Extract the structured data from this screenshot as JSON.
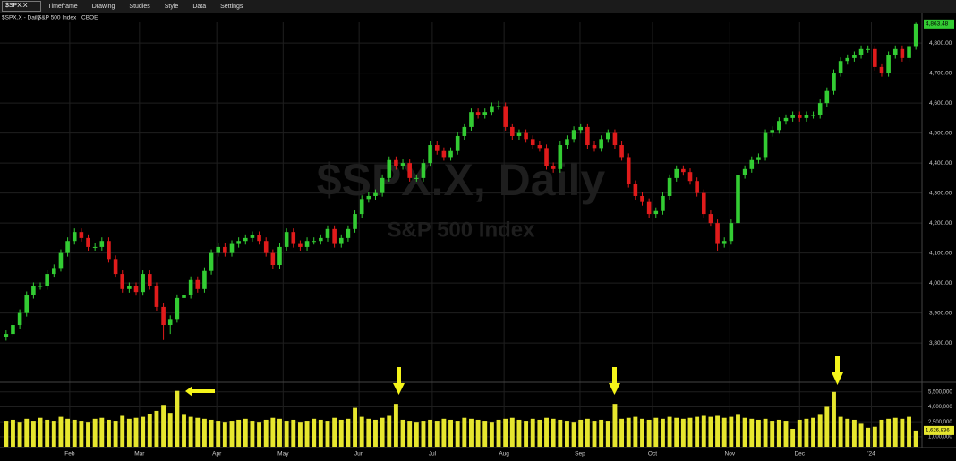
{
  "toolbar": {
    "symbol": "$SPX.X",
    "items": [
      "Timeframe",
      "Drawing",
      "Studies",
      "Style",
      "Data",
      "Settings"
    ]
  },
  "chart_data": {
    "type": "candlestick",
    "title": "$SPX.X - Daily",
    "subtitle": "S&P 500 Index",
    "source": "CBOE",
    "watermark": "$SPX.X, Daily",
    "watermark_subtitle": "S&P 500 Index",
    "xlim": [
      0,
      134
    ],
    "xticks": [
      {
        "value": 9.8,
        "label": "Feb"
      },
      {
        "value": 20,
        "label": "Mar"
      },
      {
        "value": 31.3,
        "label": "Apr"
      },
      {
        "value": 41,
        "label": "May"
      },
      {
        "value": 52.1,
        "label": "Jun"
      },
      {
        "value": 62.8,
        "label": "Jul"
      },
      {
        "value": 73.3,
        "label": "Aug"
      },
      {
        "value": 84.4,
        "label": "Sep"
      },
      {
        "value": 95,
        "label": "Oct"
      },
      {
        "value": 106.3,
        "label": "Nov"
      },
      {
        "value": 116.5,
        "label": "Dec"
      },
      {
        "value": 127,
        "label": "'24"
      }
    ],
    "ylim": [
      3675,
      4869
    ],
    "yticks": [
      {
        "value": 3800,
        "label": "3,800.00"
      },
      {
        "value": 3900,
        "label": "3,900.00"
      },
      {
        "value": 4000,
        "label": "4,000.00"
      },
      {
        "value": 4100,
        "label": "4,100.00"
      },
      {
        "value": 4200,
        "label": "4,200.00"
      },
      {
        "value": 4300,
        "label": "4,300.00"
      },
      {
        "value": 4400,
        "label": "4,400.00"
      },
      {
        "value": 4500,
        "label": "4,500.00"
      },
      {
        "value": 4600,
        "label": "4,600.00"
      },
      {
        "value": 4700,
        "label": "4,700.00"
      },
      {
        "value": 4800,
        "label": "4,800.00"
      }
    ],
    "grid": true,
    "up_color": "#33cc33",
    "down_color": "#e01b1b",
    "series": [
      {
        "name": "$SPX.X",
        "values": [
          [
            3820,
            3842,
            3808,
            3830
          ],
          [
            3830,
            3872,
            3818,
            3860
          ],
          [
            3860,
            3912,
            3848,
            3900
          ],
          [
            3900,
            3972,
            3888,
            3960
          ],
          [
            3960,
            4002,
            3948,
            3990
          ],
          [
            3990,
            4002,
            3978,
            3990
          ],
          [
            3990,
            4042,
            3978,
            4030
          ],
          [
            4030,
            4062,
            4018,
            4050
          ],
          [
            4050,
            4112,
            4038,
            4100
          ],
          [
            4100,
            4152,
            4088,
            4140
          ],
          [
            4140,
            4182,
            4128,
            4170
          ],
          [
            4170,
            4182,
            4138,
            4150
          ],
          [
            4150,
            4162,
            4108,
            4120
          ],
          [
            4120,
            4132,
            4108,
            4120
          ],
          [
            4120,
            4152,
            4108,
            4140
          ],
          [
            4140,
            4152,
            4068,
            4080
          ],
          [
            4080,
            4092,
            4018,
            4030
          ],
          [
            4030,
            4042,
            3968,
            3980
          ],
          [
            3980,
            4002,
            3968,
            3990
          ],
          [
            3990,
            4002,
            3958,
            3970
          ],
          [
            3970,
            4042,
            3958,
            4030
          ],
          [
            4030,
            4042,
            3978,
            3990
          ],
          [
            3990,
            4002,
            3908,
            3920
          ],
          [
            3920,
            3932,
            3810,
            3860
          ],
          [
            3860,
            3892,
            3830,
            3880
          ],
          [
            3880,
            3962,
            3868,
            3950
          ],
          [
            3950,
            3972,
            3938,
            3960
          ],
          [
            3960,
            4022,
            3948,
            4010
          ],
          [
            4010,
            4022,
            3968,
            3980
          ],
          [
            3980,
            4052,
            3968,
            4040
          ],
          [
            4040,
            4112,
            4028,
            4100
          ],
          [
            4100,
            4132,
            4088,
            4120
          ],
          [
            4120,
            4132,
            4088,
            4100
          ],
          [
            4100,
            4142,
            4088,
            4130
          ],
          [
            4130,
            4152,
            4118,
            4140
          ],
          [
            4140,
            4162,
            4128,
            4150
          ],
          [
            4150,
            4172,
            4138,
            4160
          ],
          [
            4160,
            4172,
            4128,
            4140
          ],
          [
            4140,
            4152,
            4088,
            4100
          ],
          [
            4100,
            4112,
            4048,
            4060
          ],
          [
            4060,
            4132,
            4048,
            4120
          ],
          [
            4120,
            4182,
            4108,
            4170
          ],
          [
            4170,
            4182,
            4118,
            4130
          ],
          [
            4130,
            4142,
            4108,
            4120
          ],
          [
            4120,
            4152,
            4108,
            4140
          ],
          [
            4140,
            4152,
            4128,
            4140
          ],
          [
            4140,
            4162,
            4128,
            4150
          ],
          [
            4150,
            4192,
            4138,
            4180
          ],
          [
            4180,
            4192,
            4118,
            4130
          ],
          [
            4130,
            4162,
            4118,
            4150
          ],
          [
            4150,
            4192,
            4138,
            4180
          ],
          [
            4180,
            4242,
            4168,
            4230
          ],
          [
            4230,
            4292,
            4218,
            4280
          ],
          [
            4280,
            4302,
            4268,
            4290
          ],
          [
            4290,
            4312,
            4278,
            4300
          ],
          [
            4300,
            4362,
            4288,
            4350
          ],
          [
            4350,
            4422,
            4338,
            4410
          ],
          [
            4410,
            4422,
            4378,
            4390
          ],
          [
            4390,
            4412,
            4378,
            4400
          ],
          [
            4400,
            4412,
            4338,
            4350
          ],
          [
            4350,
            4362,
            4338,
            4350
          ],
          [
            4350,
            4412,
            4338,
            4400
          ],
          [
            4400,
            4472,
            4388,
            4460
          ],
          [
            4460,
            4472,
            4428,
            4440
          ],
          [
            4440,
            4452,
            4408,
            4420
          ],
          [
            4420,
            4452,
            4408,
            4440
          ],
          [
            4440,
            4502,
            4428,
            4490
          ],
          [
            4490,
            4532,
            4478,
            4520
          ],
          [
            4520,
            4582,
            4508,
            4570
          ],
          [
            4570,
            4582,
            4548,
            4560
          ],
          [
            4560,
            4582,
            4548,
            4570
          ],
          [
            4570,
            4602,
            4558,
            4590
          ],
          [
            4590,
            4607,
            4578,
            4590
          ],
          [
            4590,
            4602,
            4508,
            4520
          ],
          [
            4520,
            4532,
            4478,
            4490
          ],
          [
            4490,
            4512,
            4478,
            4500
          ],
          [
            4500,
            4512,
            4468,
            4480
          ],
          [
            4480,
            4492,
            4448,
            4460
          ],
          [
            4460,
            4472,
            4438,
            4450
          ],
          [
            4450,
            4462,
            4378,
            4390
          ],
          [
            4390,
            4402,
            4368,
            4380
          ],
          [
            4380,
            4472,
            4368,
            4460
          ],
          [
            4460,
            4492,
            4448,
            4480
          ],
          [
            4480,
            4522,
            4468,
            4510
          ],
          [
            4510,
            4532,
            4498,
            4520
          ],
          [
            4520,
            4532,
            4448,
            4460
          ],
          [
            4460,
            4472,
            4438,
            4450
          ],
          [
            4450,
            4492,
            4438,
            4480
          ],
          [
            4480,
            4512,
            4468,
            4500
          ],
          [
            4500,
            4512,
            4448,
            4460
          ],
          [
            4460,
            4472,
            4408,
            4420
          ],
          [
            4420,
            4432,
            4318,
            4330
          ],
          [
            4330,
            4342,
            4278,
            4290
          ],
          [
            4290,
            4302,
            4258,
            4270
          ],
          [
            4270,
            4282,
            4218,
            4230
          ],
          [
            4230,
            4252,
            4218,
            4240
          ],
          [
            4240,
            4302,
            4228,
            4290
          ],
          [
            4290,
            4362,
            4278,
            4350
          ],
          [
            4350,
            4392,
            4338,
            4380
          ],
          [
            4380,
            4392,
            4358,
            4370
          ],
          [
            4370,
            4382,
            4328,
            4340
          ],
          [
            4340,
            4352,
            4288,
            4300
          ],
          [
            4300,
            4312,
            4218,
            4230
          ],
          [
            4230,
            4242,
            4188,
            4200
          ],
          [
            4200,
            4212,
            4108,
            4130
          ],
          [
            4130,
            4152,
            4118,
            4140
          ],
          [
            4140,
            4212,
            4128,
            4200
          ],
          [
            4200,
            4372,
            4188,
            4360
          ],
          [
            4360,
            4392,
            4348,
            4380
          ],
          [
            4380,
            4422,
            4368,
            4410
          ],
          [
            4410,
            4432,
            4398,
            4420
          ],
          [
            4420,
            4512,
            4408,
            4500
          ],
          [
            4500,
            4522,
            4488,
            4510
          ],
          [
            4510,
            4552,
            4498,
            4540
          ],
          [
            4540,
            4562,
            4528,
            4550
          ],
          [
            4550,
            4572,
            4538,
            4560
          ],
          [
            4560,
            4572,
            4538,
            4550
          ],
          [
            4550,
            4572,
            4538,
            4560
          ],
          [
            4560,
            4572,
            4548,
            4560
          ],
          [
            4560,
            4612,
            4548,
            4600
          ],
          [
            4600,
            4652,
            4588,
            4640
          ],
          [
            4640,
            4712,
            4628,
            4700
          ],
          [
            4700,
            4752,
            4688,
            4740
          ],
          [
            4740,
            4762,
            4728,
            4750
          ],
          [
            4750,
            4772,
            4738,
            4760
          ],
          [
            4760,
            4792,
            4748,
            4780
          ],
          [
            4780,
            4792,
            4768,
            4780
          ],
          [
            4780,
            4792,
            4708,
            4720
          ],
          [
            4720,
            4732,
            4688,
            4700
          ],
          [
            4700,
            4772,
            4688,
            4760
          ],
          [
            4760,
            4792,
            4748,
            4780
          ],
          [
            4780,
            4792,
            4738,
            4750
          ],
          [
            4750,
            4802,
            4738,
            4790
          ],
          [
            4790,
            4868,
            4778,
            4863.48
          ]
        ],
        "value_labels": {
          "133": "4,863.48"
        }
      }
    ],
    "volume": {
      "type": "bar",
      "color": "#e6e62e",
      "ylim": [
        0,
        6200000
      ],
      "yticks": [
        {
          "value": 5500000,
          "label": "5,500,000"
        },
        {
          "value": 4000000,
          "label": "4,000,000"
        },
        {
          "value": 2500000,
          "label": "2,500,000"
        },
        {
          "value": 1000000,
          "label": "1,000,000"
        }
      ],
      "values": [
        2600000,
        2700000,
        2500000,
        2800000,
        2600000,
        2900000,
        2700000,
        2600000,
        3000000,
        2800000,
        2700000,
        2600000,
        2500000,
        2800000,
        2900000,
        2700000,
        2600000,
        3100000,
        2800000,
        2900000,
        3000000,
        3300000,
        3600000,
        4200000,
        3400000,
        5600000,
        3200000,
        3000000,
        2900000,
        2800000,
        2700000,
        2600000,
        2500000,
        2600000,
        2700000,
        2800000,
        2600000,
        2500000,
        2700000,
        2900000,
        2800000,
        2600000,
        2700000,
        2500000,
        2600000,
        2800000,
        2700000,
        2600000,
        2900000,
        2700000,
        2800000,
        3900000,
        3000000,
        2800000,
        2700000,
        2900000,
        3100000,
        4300000,
        2700000,
        2600000,
        2500000,
        2600000,
        2700000,
        2600000,
        2800000,
        2700000,
        2600000,
        2900000,
        2800000,
        2700000,
        2600000,
        2500000,
        2700000,
        2800000,
        2900000,
        2700000,
        2600000,
        2800000,
        2700000,
        2900000,
        2800000,
        2700000,
        2600000,
        2500000,
        2700000,
        2800000,
        2600000,
        2700000,
        2600000,
        4300000,
        2800000,
        2900000,
        3000000,
        2800000,
        2700000,
        2900000,
        2800000,
        3000000,
        2900000,
        2800000,
        2900000,
        3000000,
        3100000,
        3000000,
        3100000,
        2900000,
        3000000,
        3200000,
        2900000,
        2800000,
        2700000,
        2800000,
        2600000,
        2700000,
        2600000,
        1800000,
        2700000,
        2800000,
        2900000,
        3200000,
        4000000,
        5500000,
        3000000,
        2800000,
        2700000,
        2300000,
        1900000,
        2000000,
        2700000,
        2800000,
        2900000,
        2800000,
        3000000,
        1626836
      ],
      "value_labels": {
        "133": "1,626,836"
      }
    }
  }
}
